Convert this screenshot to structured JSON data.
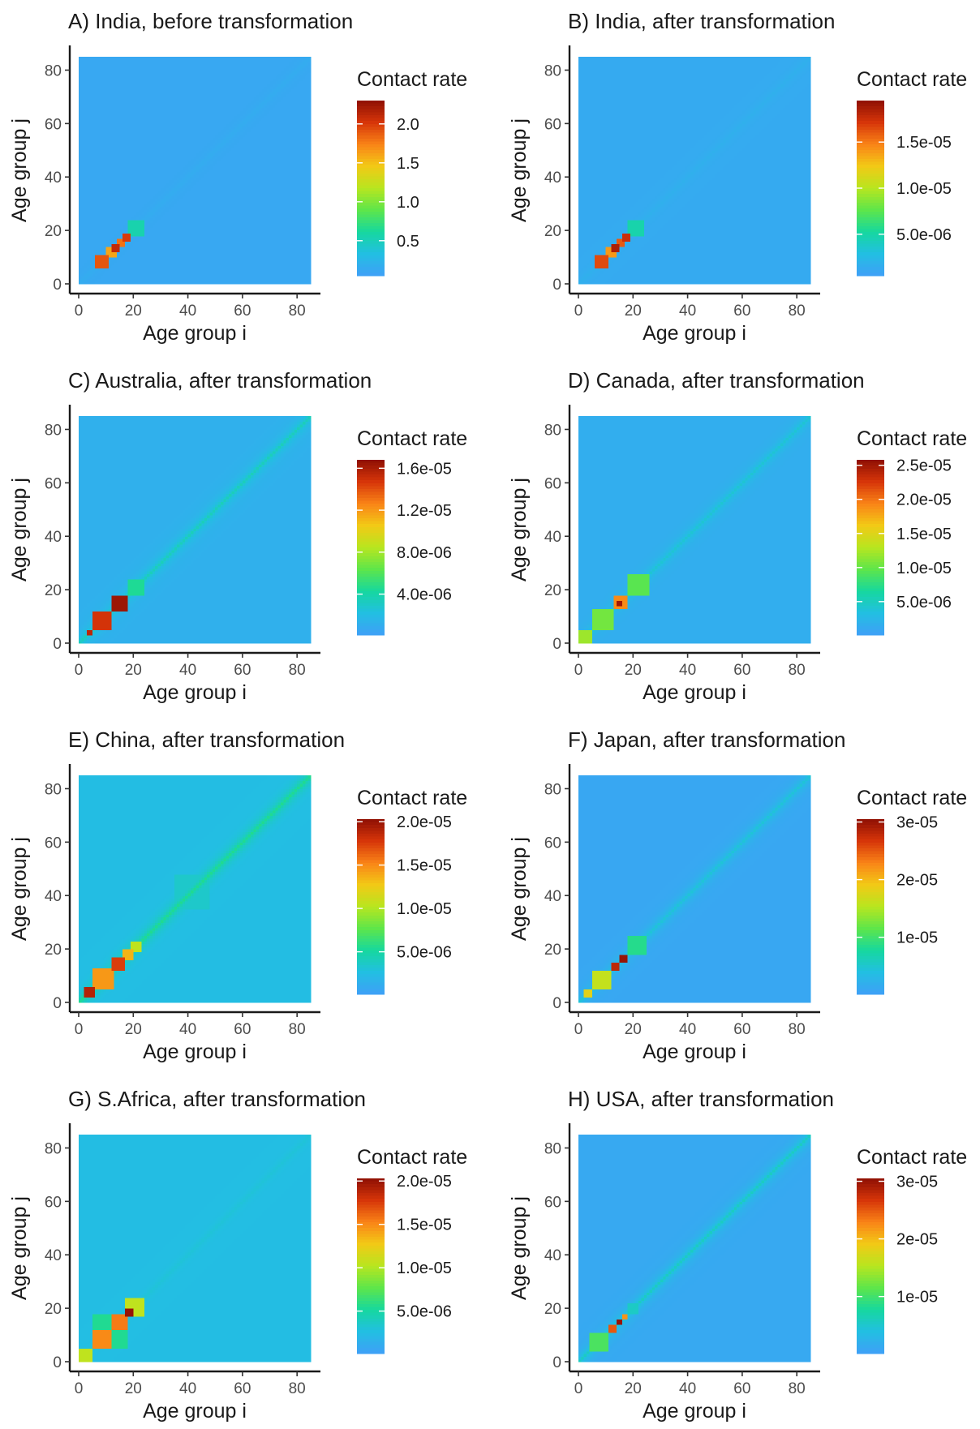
{
  "chart_data": [
    {
      "type": "heatmap",
      "title": "A) India, before transformation",
      "xlabel": "Age group i",
      "ylabel": "Age group j",
      "x_ticks": [
        0,
        20,
        40,
        60,
        80
      ],
      "y_ticks": [
        0,
        20,
        40,
        60,
        80
      ],
      "xlim": [
        0,
        85
      ],
      "ylim": [
        0,
        85
      ],
      "legend_title": "Contact rate",
      "color_range": [
        0.05,
        2.3
      ],
      "legend_ticks": [
        {
          "value": 0.5,
          "label": "0.5"
        },
        {
          "value": 1.0,
          "label": "1.0"
        },
        {
          "value": 1.5,
          "label": "1.5"
        },
        {
          "value": 2.0,
          "label": "2.0"
        }
      ],
      "background_rate": 0.12,
      "diag_ridge_rate": 0.04,
      "blocks": [
        {
          "x": [
            6,
            11
          ],
          "y": [
            6,
            11
          ],
          "rate": 1.9
        },
        {
          "x": [
            10,
            14
          ],
          "y": [
            10,
            14
          ],
          "rate": 1.6
        },
        {
          "x": [
            12,
            15
          ],
          "y": [
            12,
            15
          ],
          "rate": 2.1
        },
        {
          "x": [
            14,
            17
          ],
          "y": [
            14,
            17
          ],
          "rate": 1.8
        },
        {
          "x": [
            16,
            19
          ],
          "y": [
            16,
            19
          ],
          "rate": 2.0
        },
        {
          "x": [
            18,
            24
          ],
          "y": [
            18,
            24
          ],
          "rate": 0.55
        }
      ]
    },
    {
      "type": "heatmap",
      "title": "B) India, after transformation",
      "xlabel": "Age group i",
      "ylabel": "Age group j",
      "x_ticks": [
        0,
        20,
        40,
        60,
        80
      ],
      "y_ticks": [
        0,
        20,
        40,
        60,
        80
      ],
      "xlim": [
        0,
        85
      ],
      "ylim": [
        0,
        85
      ],
      "legend_title": "Contact rate",
      "color_range": [
        5e-07,
        1.95e-05
      ],
      "legend_ticks": [
        {
          "value": 5e-06,
          "label": "5.0e-06"
        },
        {
          "value": 1e-05,
          "label": "1.0e-05"
        },
        {
          "value": 1.5e-05,
          "label": "1.5e-05"
        }
      ],
      "background_rate": 1.3e-06,
      "diag_ridge_rate": 4e-07,
      "blocks": [
        {
          "x": [
            6,
            11
          ],
          "y": [
            6,
            11
          ],
          "rate": 1.65e-05
        },
        {
          "x": [
            10,
            14
          ],
          "y": [
            10,
            14
          ],
          "rate": 1.4e-05
        },
        {
          "x": [
            12,
            15
          ],
          "y": [
            12,
            15
          ],
          "rate": 1.85e-05
        },
        {
          "x": [
            14,
            17
          ],
          "y": [
            14,
            17
          ],
          "rate": 1.6e-05
        },
        {
          "x": [
            16,
            19
          ],
          "y": [
            16,
            19
          ],
          "rate": 1.75e-05
        },
        {
          "x": [
            18,
            24
          ],
          "y": [
            18,
            24
          ],
          "rate": 4.8e-06
        }
      ]
    },
    {
      "type": "heatmap",
      "title": "C) Australia, after transformation",
      "xlabel": "Age group i",
      "ylabel": "Age group j",
      "x_ticks": [
        0,
        20,
        40,
        60,
        80
      ],
      "y_ticks": [
        0,
        20,
        40,
        60,
        80
      ],
      "xlim": [
        0,
        85
      ],
      "ylim": [
        0,
        85
      ],
      "legend_title": "Contact rate",
      "color_range": [
        1e-07,
        1.68e-05
      ],
      "legend_ticks": [
        {
          "value": 4e-06,
          "label": "4.0e-06"
        },
        {
          "value": 8e-06,
          "label": "8.0e-06"
        },
        {
          "value": 1.2e-05,
          "label": "1.2e-05"
        },
        {
          "value": 1.6e-05,
          "label": "1.6e-05"
        }
      ],
      "background_rate": 1.2e-06,
      "diag_ridge_rate": 2.2e-06,
      "blocks": [
        {
          "x": [
            3,
            5
          ],
          "y": [
            3,
            5
          ],
          "rate": 1.55e-05
        },
        {
          "x": [
            5,
            12
          ],
          "y": [
            5,
            12
          ],
          "rate": 1.48e-05
        },
        {
          "x": [
            12,
            18
          ],
          "y": [
            12,
            18
          ],
          "rate": 1.64e-05
        },
        {
          "x": [
            18,
            24
          ],
          "y": [
            18,
            24
          ],
          "rate": 4.5e-06
        }
      ]
    },
    {
      "type": "heatmap",
      "title": "D) Canada, after transformation",
      "xlabel": "Age group i",
      "ylabel": "Age group j",
      "x_ticks": [
        0,
        20,
        40,
        60,
        80
      ],
      "y_ticks": [
        0,
        20,
        40,
        60,
        80
      ],
      "xlim": [
        0,
        85
      ],
      "ylim": [
        0,
        85
      ],
      "legend_title": "Contact rate",
      "color_range": [
        1e-07,
        2.58e-05
      ],
      "legend_ticks": [
        {
          "value": 5e-06,
          "label": "5.0e-06"
        },
        {
          "value": 1e-05,
          "label": "1.0e-05"
        },
        {
          "value": 1.5e-05,
          "label": "1.5e-05"
        },
        {
          "value": 2e-05,
          "label": "2.0e-05"
        },
        {
          "value": 2.5e-05,
          "label": "2.5e-05"
        }
      ],
      "background_rate": 1.5e-06,
      "diag_ridge_rate": 2.5e-06,
      "blocks": [
        {
          "x": [
            0,
            5
          ],
          "y": [
            0,
            5
          ],
          "rate": 1.2e-05
        },
        {
          "x": [
            5,
            13
          ],
          "y": [
            5,
            13
          ],
          "rate": 1.05e-05
        },
        {
          "x": [
            13,
            18
          ],
          "y": [
            13,
            18
          ],
          "rate": 1.9e-05
        },
        {
          "x": [
            14,
            16
          ],
          "y": [
            14,
            16
          ],
          "rate": 2.5e-05
        },
        {
          "x": [
            18,
            26
          ],
          "y": [
            18,
            26
          ],
          "rate": 9.5e-06
        }
      ]
    },
    {
      "type": "heatmap",
      "title": "E) China, after transformation",
      "xlabel": "Age group i",
      "ylabel": "Age group j",
      "x_ticks": [
        0,
        20,
        40,
        60,
        80
      ],
      "y_ticks": [
        0,
        20,
        40,
        60,
        80
      ],
      "xlim": [
        0,
        85
      ],
      "ylim": [
        0,
        85
      ],
      "legend_title": "Contact rate",
      "color_range": [
        1e-07,
        2.03e-05
      ],
      "legend_ticks": [
        {
          "value": 5e-06,
          "label": "5.0e-06"
        },
        {
          "value": 1e-05,
          "label": "1.0e-05"
        },
        {
          "value": 1.5e-05,
          "label": "1.5e-05"
        },
        {
          "value": 2e-05,
          "label": "2.0e-05"
        }
      ],
      "background_rate": 2.5e-06,
      "diag_ridge_rate": 3e-06,
      "blocks": [
        {
          "x": [
            2,
            6
          ],
          "y": [
            2,
            6
          ],
          "rate": 1.9e-05
        },
        {
          "x": [
            5,
            13
          ],
          "y": [
            5,
            13
          ],
          "rate": 1.45e-05
        },
        {
          "x": [
            12,
            17
          ],
          "y": [
            12,
            17
          ],
          "rate": 1.75e-05
        },
        {
          "x": [
            16,
            20
          ],
          "y": [
            16,
            20
          ],
          "rate": 1.35e-05
        },
        {
          "x": [
            19,
            23
          ],
          "y": [
            19,
            23
          ],
          "rate": 1.05e-05
        },
        {
          "x": [
            35,
            48
          ],
          "y": [
            35,
            48
          ],
          "rate": 3.5e-06
        }
      ]
    },
    {
      "type": "heatmap",
      "title": "F) Japan, after transformation",
      "xlabel": "Age group i",
      "ylabel": "Age group j",
      "x_ticks": [
        0,
        20,
        40,
        60,
        80
      ],
      "y_ticks": [
        0,
        20,
        40,
        60,
        80
      ],
      "xlim": [
        0,
        85
      ],
      "ylim": [
        0,
        85
      ],
      "legend_title": "Contact rate",
      "color_range": [
        1e-07,
        3.05e-05
      ],
      "legend_ticks": [
        {
          "value": 1e-05,
          "label": "1e-05"
        },
        {
          "value": 2e-05,
          "label": "2e-05"
        },
        {
          "value": 3e-05,
          "label": "3e-05"
        }
      ],
      "background_rate": 1e-06,
      "diag_ridge_rate": 3.5e-06,
      "blocks": [
        {
          "x": [
            2,
            5
          ],
          "y": [
            2,
            5
          ],
          "rate": 1.8e-05
        },
        {
          "x": [
            5,
            12
          ],
          "y": [
            5,
            12
          ],
          "rate": 1.6e-05
        },
        {
          "x": [
            12,
            15
          ],
          "y": [
            12,
            15
          ],
          "rate": 2.8e-05
        },
        {
          "x": [
            15,
            18
          ],
          "y": [
            15,
            18
          ],
          "rate": 3e-05
        },
        {
          "x": [
            18,
            25
          ],
          "y": [
            18,
            25
          ],
          "rate": 8.5e-06
        }
      ]
    },
    {
      "type": "heatmap",
      "title": "G) S.Africa, after transformation",
      "xlabel": "Age group i",
      "ylabel": "Age group j",
      "x_ticks": [
        0,
        20,
        40,
        60,
        80
      ],
      "y_ticks": [
        0,
        20,
        40,
        60,
        80
      ],
      "xlim": [
        0,
        85
      ],
      "ylim": [
        0,
        85
      ],
      "legend_title": "Contact rate",
      "color_range": [
        1e-07,
        2.03e-05
      ],
      "legend_ticks": [
        {
          "value": 5e-06,
          "label": "5.0e-06"
        },
        {
          "value": 1e-05,
          "label": "1.0e-05"
        },
        {
          "value": 1.5e-05,
          "label": "1.5e-05"
        },
        {
          "value": 2e-05,
          "label": "2.0e-05"
        }
      ],
      "background_rate": 2.5e-06,
      "diag_ridge_rate": 5e-07,
      "blocks": [
        {
          "x": [
            0,
            5
          ],
          "y": [
            0,
            5
          ],
          "rate": 1.05e-05
        },
        {
          "x": [
            5,
            12
          ],
          "y": [
            12,
            18
          ],
          "rate": 5.5e-06
        },
        {
          "x": [
            12,
            18
          ],
          "y": [
            5,
            12
          ],
          "rate": 5.5e-06
        },
        {
          "x": [
            5,
            12
          ],
          "y": [
            5,
            12
          ],
          "rate": 1.5e-05
        },
        {
          "x": [
            12,
            18
          ],
          "y": [
            12,
            18
          ],
          "rate": 1.55e-05
        },
        {
          "x": [
            17,
            24
          ],
          "y": [
            17,
            24
          ],
          "rate": 1.05e-05
        },
        {
          "x": [
            17,
            20
          ],
          "y": [
            17,
            20
          ],
          "rate": 2e-05
        }
      ]
    },
    {
      "type": "heatmap",
      "title": "H) USA, after transformation",
      "xlabel": "Age group i",
      "ylabel": "Age group j",
      "x_ticks": [
        0,
        20,
        40,
        60,
        80
      ],
      "y_ticks": [
        0,
        20,
        40,
        60,
        80
      ],
      "xlim": [
        0,
        85
      ],
      "ylim": [
        0,
        85
      ],
      "legend_title": "Contact rate",
      "color_range": [
        1e-07,
        3.05e-05
      ],
      "legend_ticks": [
        {
          "value": 1e-05,
          "label": "1e-05"
        },
        {
          "value": 2e-05,
          "label": "2e-05"
        },
        {
          "value": 3e-05,
          "label": "3e-05"
        }
      ],
      "background_rate": 1.2e-06,
      "diag_ridge_rate": 4.5e-06,
      "blocks": [
        {
          "x": [
            4,
            11
          ],
          "y": [
            4,
            11
          ],
          "rate": 1.05e-05
        },
        {
          "x": [
            11,
            14
          ],
          "y": [
            11,
            14
          ],
          "rate": 2.5e-05
        },
        {
          "x": [
            14,
            16
          ],
          "y": [
            14,
            16
          ],
          "rate": 3e-05
        },
        {
          "x": [
            16,
            18
          ],
          "y": [
            16,
            18
          ],
          "rate": 2.2e-05
        },
        {
          "x": [
            18,
            22
          ],
          "y": [
            18,
            22
          ],
          "rate": 5.5e-06
        }
      ]
    }
  ],
  "colors": {
    "palette": [
      "#3fa0f7",
      "#22bfe2",
      "#16d89e",
      "#5ee64a",
      "#b8e61f",
      "#f2c916",
      "#f98317",
      "#d63509",
      "#8e1004"
    ],
    "axis": "#1a1a1a",
    "tick_label": "#4d4d4d"
  }
}
